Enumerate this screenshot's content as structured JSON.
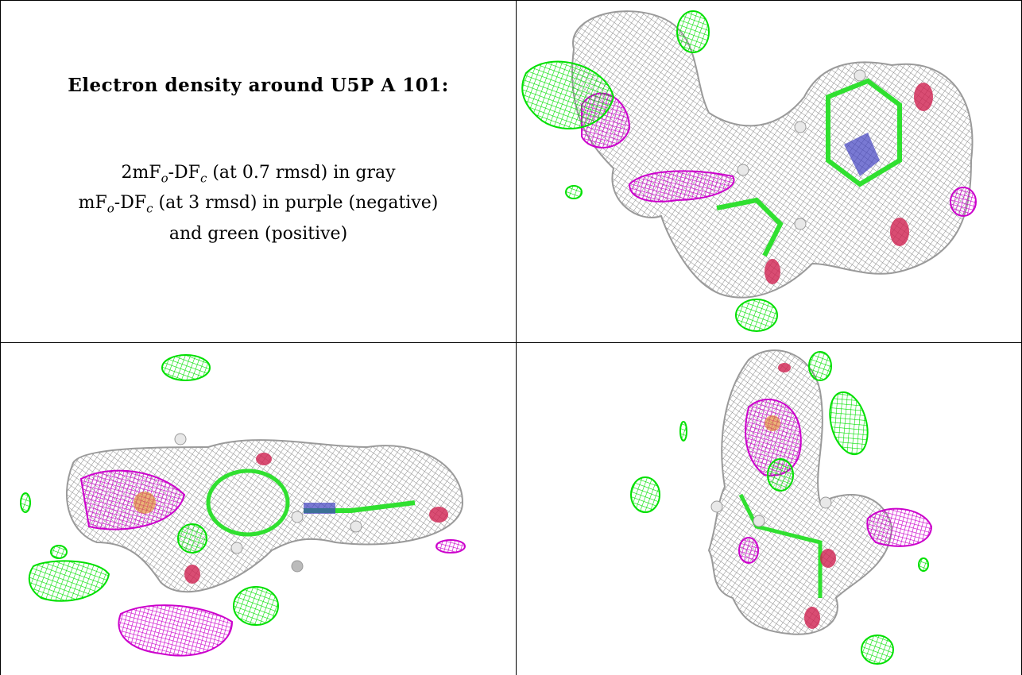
{
  "caption": {
    "title": "Electron density around U5P A 101:",
    "line1_pre": "2mF",
    "line1_sub1": "o",
    "line1_mid": "-DF",
    "line1_sub2": "c",
    "line1_post": " (at 0.7 rmsd) in gray",
    "line2_pre": "mF",
    "line2_sub1": "o",
    "line2_mid": "-DF",
    "line2_sub2": "c",
    "line2_post": " (at 3 rmsd) in purple (negative)",
    "line3": "and green (positive)"
  },
  "colors": {
    "mesh_gray": "#8f8f8f",
    "mesh_purple": "#cc00cc",
    "mesh_green": "#00e000",
    "atom_red": "#d02050",
    "atom_blue": "#4040c0",
    "atom_orange": "#e08020",
    "bond_green": "#30e030",
    "hydrogen": "#e8e8e8"
  },
  "panels": [
    {
      "name": "view-top-right"
    },
    {
      "name": "view-bottom-left"
    },
    {
      "name": "view-bottom-right"
    }
  ]
}
